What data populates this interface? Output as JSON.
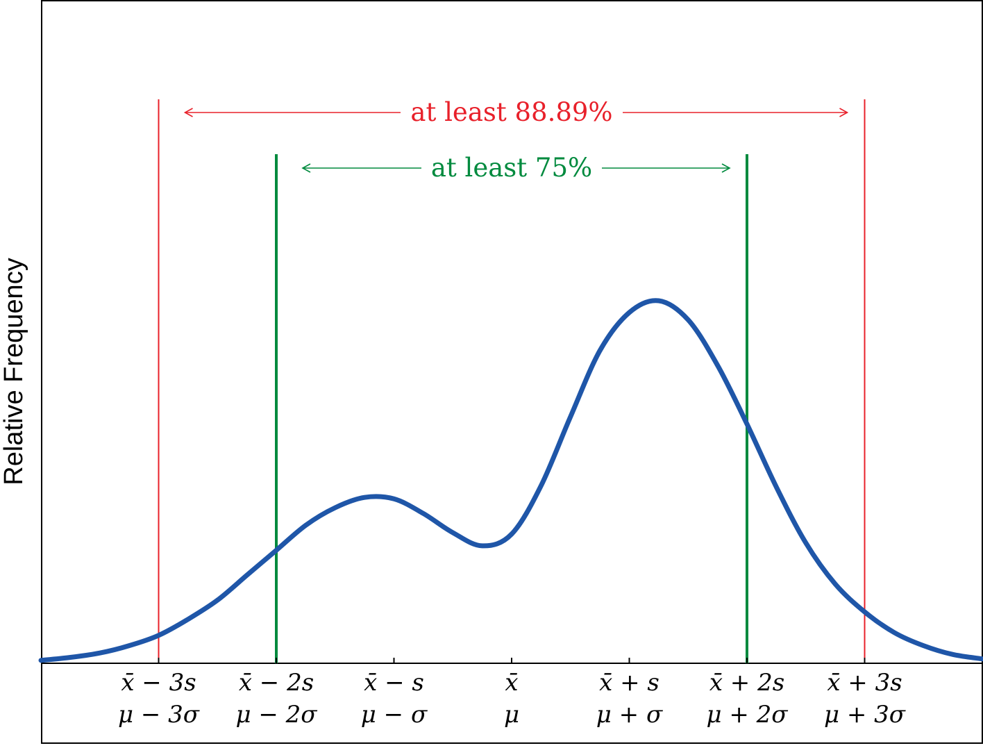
{
  "chart_data": {
    "type": "line",
    "title": "",
    "xlabel": "",
    "ylabel": "Relative Frequency",
    "xlim": [
      -4,
      4
    ],
    "ylim": [
      0,
      0.3
    ],
    "grid": false,
    "ticks": [
      {
        "x": -3,
        "line1": "x̄ − 3s",
        "line2": "μ − 3σ"
      },
      {
        "x": -2,
        "line1": "x̄ − 2s",
        "line2": "μ − 2σ"
      },
      {
        "x": -1,
        "line1": "x̄ − s",
        "line2": "μ − σ"
      },
      {
        "x": 0,
        "line1": "x̄",
        "line2": "μ"
      },
      {
        "x": 1,
        "line1": "x̄ + s",
        "line2": "μ + σ"
      },
      {
        "x": 2,
        "line1": "x̄ + 2s",
        "line2": "μ + 2σ"
      },
      {
        "x": 3,
        "line1": "x̄ + 3s",
        "line2": "μ + 3σ"
      }
    ],
    "bands": [
      {
        "label": "at least 88.89%",
        "from": -3,
        "to": 3,
        "color": "#e8202a"
      },
      {
        "label": "at least 75%",
        "from": -2,
        "to": 2,
        "color": "#008a3e"
      }
    ],
    "series": [
      {
        "color": "#1f56a8",
        "x": [
          -4,
          -3.75,
          -3.5,
          -3.25,
          -3,
          -2.75,
          -2.5,
          -2.25,
          -2,
          -1.75,
          -1.5,
          -1.25,
          -1,
          -0.75,
          -0.5,
          -0.25,
          0,
          0.25,
          0.5,
          0.75,
          1,
          1.25,
          1.5,
          1.75,
          2,
          2.25,
          2.5,
          2.75,
          3,
          3.25,
          3.5,
          3.75,
          4
        ],
        "y": [
          0.002,
          0.004,
          0.007,
          0.012,
          0.019,
          0.03,
          0.043,
          0.06,
          0.077,
          0.094,
          0.106,
          0.113,
          0.112,
          0.102,
          0.089,
          0.08,
          0.088,
          0.121,
          0.168,
          0.213,
          0.239,
          0.247,
          0.234,
          0.203,
          0.163,
          0.12,
          0.082,
          0.054,
          0.035,
          0.021,
          0.012,
          0.006,
          0.003
        ]
      }
    ]
  }
}
